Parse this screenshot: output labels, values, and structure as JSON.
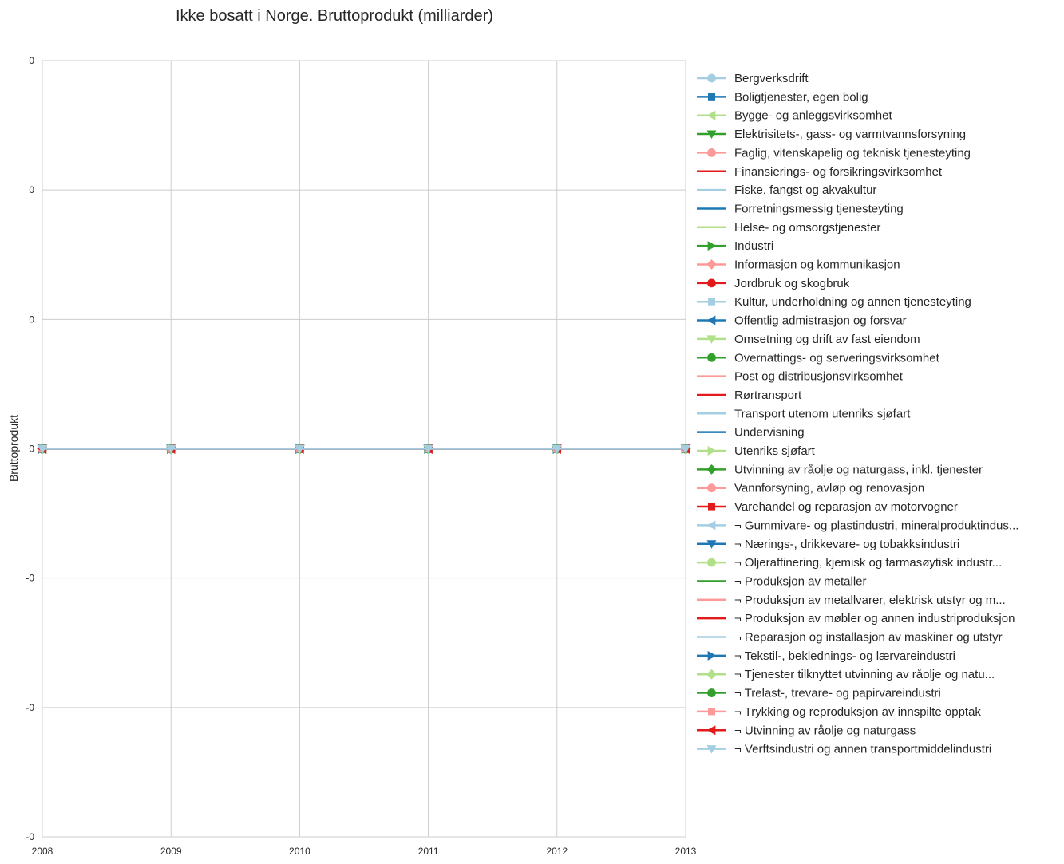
{
  "chart_data": {
    "type": "line",
    "title": "Ikke bosatt i Norge. Bruttoprodukt (milliarder)",
    "xlabel": "",
    "ylabel": "Bruttoprodukt",
    "x": [
      "2008",
      "2009",
      "2010",
      "2011",
      "2012",
      "2013"
    ],
    "y_tick_labels": [
      "-0",
      "-0",
      "-0",
      "0",
      "0",
      "0",
      "0"
    ],
    "ylim": [
      -0.06,
      0.06
    ],
    "grid": true,
    "legend_position": "outside-right",
    "series": [
      {
        "name": "Bergverksdrift",
        "color": "#a6cee3",
        "marker": "circle",
        "values": [
          0,
          0,
          0,
          0,
          0,
          0
        ]
      },
      {
        "name": "Boligtjenester, egen bolig",
        "color": "#1f78b4",
        "marker": "square",
        "values": [
          0,
          0,
          0,
          0,
          0,
          0
        ]
      },
      {
        "name": "Bygge- og anleggsvirksomhet",
        "color": "#b2df8a",
        "marker": "triangle-left",
        "values": [
          0,
          0,
          0,
          0,
          0,
          0
        ]
      },
      {
        "name": "Elektrisitets-, gass- og varmtvannsforsyning",
        "color": "#33a02c",
        "marker": "triangle-down",
        "values": [
          0,
          0,
          0,
          0,
          0,
          0
        ]
      },
      {
        "name": "Faglig, vitenskapelig og teknisk tjenesteyting",
        "color": "#fb9a99",
        "marker": "circle",
        "values": [
          0,
          0,
          0,
          0,
          0,
          0
        ]
      },
      {
        "name": "Finansierings- og forsikringsvirksomhet",
        "color": "#e31a1c",
        "marker": "none",
        "values": [
          0,
          0,
          0,
          0,
          0,
          0
        ]
      },
      {
        "name": "Fiske, fangst og akvakultur",
        "color": "#a6cee3",
        "marker": "none",
        "values": [
          0,
          0,
          0,
          0,
          0,
          0
        ]
      },
      {
        "name": "Forretningsmessig tjenesteyting",
        "color": "#1f78b4",
        "marker": "none",
        "values": [
          0,
          0,
          0,
          0,
          0,
          0
        ]
      },
      {
        "name": "Helse- og omsorgstjenester",
        "color": "#b2df8a",
        "marker": "none",
        "values": [
          0,
          0,
          0,
          0,
          0,
          0
        ]
      },
      {
        "name": "Industri",
        "color": "#33a02c",
        "marker": "triangle-right",
        "values": [
          0,
          0,
          0,
          0,
          0,
          0
        ]
      },
      {
        "name": "Informasjon og kommunikasjon",
        "color": "#fb9a99",
        "marker": "diamond",
        "values": [
          0,
          0,
          0,
          0,
          0,
          0
        ]
      },
      {
        "name": "Jordbruk og skogbruk",
        "color": "#e31a1c",
        "marker": "circle",
        "values": [
          0,
          0,
          0,
          0,
          0,
          0
        ]
      },
      {
        "name": "Kultur, underholdning og annen tjenesteyting",
        "color": "#a6cee3",
        "marker": "square",
        "values": [
          0,
          0,
          0,
          0,
          0,
          0
        ]
      },
      {
        "name": "Offentlig admistrasjon og forsvar",
        "color": "#1f78b4",
        "marker": "triangle-left",
        "values": [
          0,
          0,
          0,
          0,
          0,
          0
        ]
      },
      {
        "name": "Omsetning og drift av fast eiendom",
        "color": "#b2df8a",
        "marker": "triangle-down",
        "values": [
          0,
          0,
          0,
          0,
          0,
          0
        ]
      },
      {
        "name": "Overnattings- og serveringsvirksomhet",
        "color": "#33a02c",
        "marker": "circle",
        "values": [
          0,
          0,
          0,
          0,
          0,
          0
        ]
      },
      {
        "name": "Post og distribusjonsvirksomhet",
        "color": "#fb9a99",
        "marker": "none",
        "values": [
          0,
          0,
          0,
          0,
          0,
          0
        ]
      },
      {
        "name": "Rørtransport",
        "color": "#e31a1c",
        "marker": "none",
        "values": [
          0,
          0,
          0,
          0,
          0,
          0
        ]
      },
      {
        "name": "Transport utenom utenriks sjøfart",
        "color": "#a6cee3",
        "marker": "none",
        "values": [
          0,
          0,
          0,
          0,
          0,
          0
        ]
      },
      {
        "name": "Undervisning",
        "color": "#1f78b4",
        "marker": "none",
        "values": [
          0,
          0,
          0,
          0,
          0,
          0
        ]
      },
      {
        "name": "Utenriks sjøfart",
        "color": "#b2df8a",
        "marker": "triangle-right",
        "values": [
          0,
          0,
          0,
          0,
          0,
          0
        ]
      },
      {
        "name": "Utvinning av råolje og naturgass, inkl. tjenester",
        "color": "#33a02c",
        "marker": "diamond",
        "values": [
          0,
          0,
          0,
          0,
          0,
          0
        ]
      },
      {
        "name": "Vannforsyning, avløp og renovasjon",
        "color": "#fb9a99",
        "marker": "circle",
        "values": [
          0,
          0,
          0,
          0,
          0,
          0
        ]
      },
      {
        "name": "Varehandel og reparasjon av motorvogner",
        "color": "#e31a1c",
        "marker": "square",
        "values": [
          0,
          0,
          0,
          0,
          0,
          0
        ]
      },
      {
        "name": "¬ Gummivare- og plastindustri, mineralproduktindus...",
        "color": "#a6cee3",
        "marker": "triangle-left",
        "values": [
          0,
          0,
          0,
          0,
          0,
          0
        ]
      },
      {
        "name": "¬ Nærings-, drikkevare- og tobakksindustri",
        "color": "#1f78b4",
        "marker": "triangle-down",
        "values": [
          0,
          0,
          0,
          0,
          0,
          0
        ]
      },
      {
        "name": "¬ Oljeraffinering, kjemisk og farmasøytisk industr...",
        "color": "#b2df8a",
        "marker": "circle",
        "values": [
          0,
          0,
          0,
          0,
          0,
          0
        ]
      },
      {
        "name": "¬ Produksjon av metaller",
        "color": "#33a02c",
        "marker": "none",
        "values": [
          0,
          0,
          0,
          0,
          0,
          0
        ]
      },
      {
        "name": "¬ Produksjon av metallvarer, elektrisk utstyr og m...",
        "color": "#fb9a99",
        "marker": "none",
        "values": [
          0,
          0,
          0,
          0,
          0,
          0
        ]
      },
      {
        "name": "¬ Produksjon av møbler og annen industriproduksjon",
        "color": "#e31a1c",
        "marker": "none",
        "values": [
          0,
          0,
          0,
          0,
          0,
          0
        ]
      },
      {
        "name": "¬ Reparasjon og installasjon av maskiner og utstyr",
        "color": "#a6cee3",
        "marker": "none",
        "values": [
          0,
          0,
          0,
          0,
          0,
          0
        ]
      },
      {
        "name": "¬ Tekstil-, beklednings- og lærvareindustri",
        "color": "#1f78b4",
        "marker": "triangle-right",
        "values": [
          0,
          0,
          0,
          0,
          0,
          0
        ]
      },
      {
        "name": "¬ Tjenester tilknyttet utvinning av råolje og natu...",
        "color": "#b2df8a",
        "marker": "diamond",
        "values": [
          0,
          0,
          0,
          0,
          0,
          0
        ]
      },
      {
        "name": "¬ Trelast-, trevare- og papirvareindustri",
        "color": "#33a02c",
        "marker": "circle",
        "values": [
          0,
          0,
          0,
          0,
          0,
          0
        ]
      },
      {
        "name": "¬ Trykking og reproduksjon av innspilte opptak",
        "color": "#fb9a99",
        "marker": "square",
        "values": [
          0,
          0,
          0,
          0,
          0,
          0
        ]
      },
      {
        "name": "¬ Utvinning av råolje og naturgass",
        "color": "#e31a1c",
        "marker": "triangle-left",
        "values": [
          0,
          0,
          0,
          0,
          0,
          0
        ]
      },
      {
        "name": "¬ Verftsindustri og annen transportmiddelindustri",
        "color": "#a6cee3",
        "marker": "triangle-down",
        "values": [
          0,
          0,
          0,
          0,
          0,
          0
        ]
      }
    ]
  }
}
